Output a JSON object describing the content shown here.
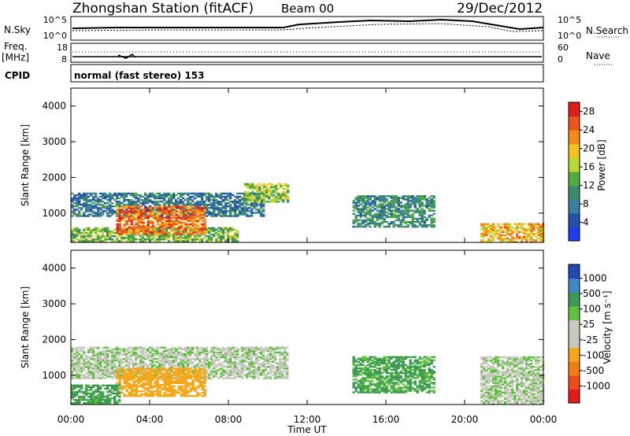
{
  "header": {
    "station": "Zhongshan Station (fitACF)",
    "beam": "Beam 00",
    "date": "29/Dec/2012"
  },
  "top_panel": {
    "left_label": "N.Sky",
    "right_label": "N.Search",
    "left_ticks": [
      "10^5",
      "10^0"
    ],
    "right_ticks": [
      "10^5",
      "10^0"
    ]
  },
  "freq_panel": {
    "left_label_1": "Freq.",
    "left_label_2": "[MHz]",
    "right_label": "Nave",
    "left_ticks": [
      "18",
      "8"
    ],
    "right_ticks": [
      "60",
      "0"
    ]
  },
  "cpid_panel": {
    "label": "CPID",
    "mode": "normal (fast stereo) 153"
  },
  "colors": {
    "power_scale": [
      "#1f3cf0",
      "#2451a8",
      "#3a7ea2",
      "#3a8a6a",
      "#4fae3e",
      "#b8d838",
      "#f2c521",
      "#f28a17",
      "#ec5520",
      "#e21d1d"
    ],
    "velocity_scale": [
      "#e81b1b",
      "#ef4d17",
      "#f07f13",
      "#f4a81a",
      "#c8c8be",
      "#c8c8be",
      "#5fc23e",
      "#3c9a55",
      "#3a8ac6",
      "#2646b0"
    ]
  },
  "chart_data": [
    {
      "type": "heatmap",
      "title": "",
      "xlabel": "Time UT",
      "ylabel": "Slant Range [km]",
      "x_ticks": [
        "00:00",
        "04:00",
        "08:00",
        "12:00",
        "16:00",
        "20:00",
        "00:00"
      ],
      "y_ticks": [
        "1000",
        "2000",
        "3000",
        "4000"
      ],
      "ylim": [
        180,
        4500
      ],
      "colorbar": {
        "label": "Power [dB]",
        "ticks": [
          "4",
          "8",
          "12",
          "16",
          "20",
          "24",
          "28"
        ],
        "range": [
          0,
          30
        ]
      },
      "regions": [
        {
          "t_start": 0.0,
          "t_end": 9.8,
          "r_low": 900,
          "r_high": 1550,
          "level": 8
        },
        {
          "t_start": 0.0,
          "t_end": 8.5,
          "r_low": 200,
          "r_high": 600,
          "level": 14
        },
        {
          "t_start": 2.3,
          "t_end": 6.8,
          "r_low": 400,
          "r_high": 1200,
          "level": 24
        },
        {
          "t_start": 8.8,
          "t_end": 11.0,
          "r_low": 1300,
          "r_high": 1800,
          "level": 16
        },
        {
          "t_start": 14.3,
          "t_end": 18.5,
          "r_low": 600,
          "r_high": 1500,
          "level": 10
        },
        {
          "t_start": 20.8,
          "t_end": 24.0,
          "r_low": 180,
          "r_high": 700,
          "level": 20
        }
      ]
    },
    {
      "type": "heatmap",
      "title": "",
      "xlabel": "Time UT",
      "ylabel": "Slant Range [km]",
      "x_ticks": [
        "00:00",
        "04:00",
        "08:00",
        "12:00",
        "16:00",
        "20:00",
        "00:00"
      ],
      "y_ticks": [
        "1000",
        "2000",
        "3000",
        "4000"
      ],
      "ylim": [
        180,
        4500
      ],
      "colorbar": {
        "label": "Velocity [m s⁻¹]",
        "ticks": [
          "1000",
          "500",
          "100",
          "25",
          "-25",
          "-100",
          "-500",
          "-1000"
        ],
        "range": [
          -1000,
          1000
        ]
      },
      "regions": [
        {
          "t_start": 0.0,
          "t_end": 11.0,
          "r_low": 900,
          "r_high": 1800,
          "velocity": 0
        },
        {
          "t_start": 2.3,
          "t_end": 6.8,
          "r_low": 400,
          "r_high": 1200,
          "velocity": -300
        },
        {
          "t_start": 0.0,
          "t_end": 2.5,
          "r_low": 200,
          "r_high": 700,
          "velocity": 150
        },
        {
          "t_start": 14.3,
          "t_end": 18.5,
          "r_low": 500,
          "r_high": 1500,
          "velocity": 120
        },
        {
          "t_start": 20.8,
          "t_end": 24.0,
          "r_low": 180,
          "r_high": 1500,
          "velocity": 0
        }
      ]
    }
  ]
}
